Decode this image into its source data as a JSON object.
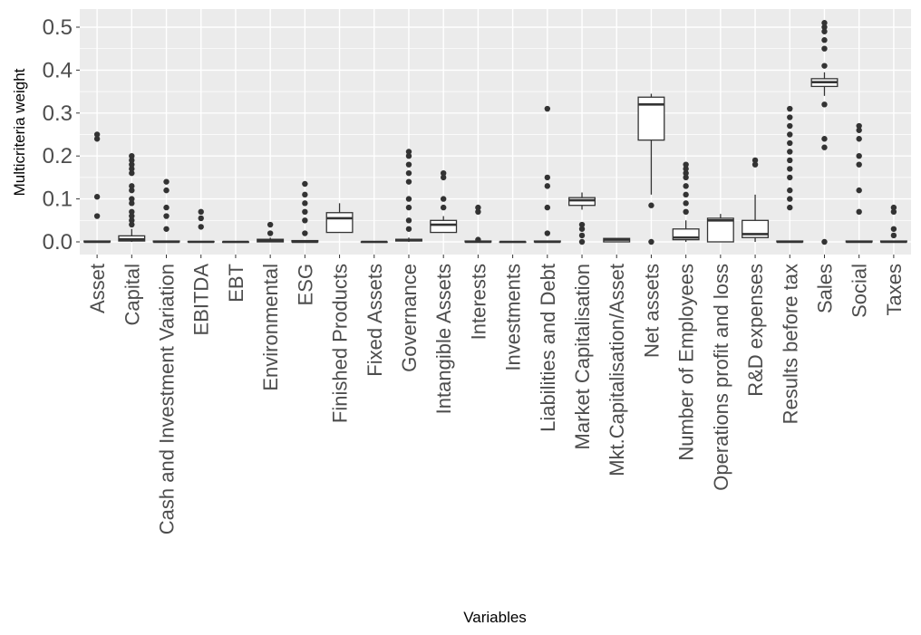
{
  "chart_data": {
    "type": "boxplot",
    "xlabel": "Variables",
    "ylabel": "Multicriteria weight",
    "ylim": [
      -0.03,
      0.53
    ],
    "yticks": [
      0.0,
      0.1,
      0.2,
      0.3,
      0.4,
      0.5
    ],
    "ytick_labels": [
      "0.0",
      "0.1",
      "0.2",
      "0.3",
      "0.4",
      "0.5"
    ],
    "grid": true,
    "colors": {
      "panel": "#ebebeb",
      "grid": "#ffffff",
      "box_fill": "#ffffff",
      "box_stroke": "#333333",
      "text": "#4d4d4d"
    },
    "categories": [
      "Asset",
      "Capital",
      "Cash and Investment Variation",
      "EBITDA",
      "EBT",
      "Environmental",
      "ESG",
      "Finished Products",
      "Fixed Assets",
      "Governance",
      "Intangible Assets",
      "Interests",
      "Investments",
      "Liabilities and Debt",
      "Market Capitalisation",
      "Mkt.Capitalisation/Asset",
      "Net assets",
      "Number of Employees",
      "Operations profit and loss",
      "R&D expenses",
      "Results before tax",
      "Sales",
      "Social",
      "Taxes"
    ],
    "boxes": [
      {
        "q1": 0,
        "median": 0,
        "q3": 0.002,
        "wlow": 0,
        "whigh": 0.002,
        "outliers": [
          0.105,
          0.06,
          0.24,
          0.25
        ]
      },
      {
        "q1": 0.002,
        "median": 0.006,
        "q3": 0.014,
        "wlow": 0,
        "whigh": 0.03,
        "outliers": [
          0.04,
          0.05,
          0.06,
          0.07,
          0.09,
          0.1,
          0.12,
          0.13,
          0.16,
          0.17,
          0.18,
          0.19,
          0.2
        ]
      },
      {
        "q1": 0,
        "median": 0,
        "q3": 0.002,
        "wlow": 0,
        "whigh": 0.002,
        "outliers": [
          0.03,
          0.06,
          0.08,
          0.12,
          0.14
        ]
      },
      {
        "q1": 0,
        "median": 0,
        "q3": 0.001,
        "wlow": 0,
        "whigh": 0.001,
        "outliers": [
          0.035,
          0.055,
          0.07
        ]
      },
      {
        "q1": 0,
        "median": 0,
        "q3": 0,
        "wlow": 0,
        "whigh": 0,
        "outliers": []
      },
      {
        "q1": 0,
        "median": 0.003,
        "q3": 0.006,
        "wlow": 0,
        "whigh": 0.01,
        "outliers": [
          0.02,
          0.04
        ]
      },
      {
        "q1": 0,
        "median": 0,
        "q3": 0.003,
        "wlow": 0,
        "whigh": 0.003,
        "outliers": [
          0.02,
          0.05,
          0.07,
          0.09,
          0.11,
          0.135
        ]
      },
      {
        "q1": 0.022,
        "median": 0.055,
        "q3": 0.068,
        "wlow": 0.022,
        "whigh": 0.09,
        "outliers": []
      },
      {
        "q1": 0,
        "median": 0,
        "q3": 0,
        "wlow": 0,
        "whigh": 0,
        "outliers": []
      },
      {
        "q1": 0.002,
        "median": 0.004,
        "q3": 0.006,
        "wlow": 0,
        "whigh": 0.01,
        "outliers": [
          0.03,
          0.05,
          0.08,
          0.1,
          0.14,
          0.16,
          0.18,
          0.2,
          0.21
        ]
      },
      {
        "q1": 0.022,
        "median": 0.04,
        "q3": 0.05,
        "wlow": 0.022,
        "whigh": 0.06,
        "outliers": [
          0.08,
          0.1,
          0.15,
          0.16
        ]
      },
      {
        "q1": 0,
        "median": 0,
        "q3": 0.002,
        "wlow": 0,
        "whigh": 0.002,
        "outliers": [
          0.005,
          0.07,
          0.08
        ]
      },
      {
        "q1": 0,
        "median": 0,
        "q3": 0,
        "wlow": 0,
        "whigh": 0,
        "outliers": []
      },
      {
        "q1": 0,
        "median": 0,
        "q3": 0.002,
        "wlow": 0,
        "whigh": 0.002,
        "outliers": [
          0.02,
          0.08,
          0.13,
          0.15,
          0.31
        ]
      },
      {
        "q1": 0.085,
        "median": 0.097,
        "q3": 0.103,
        "wlow": 0.075,
        "whigh": 0.115,
        "outliers": [
          0.0,
          0.015,
          0.03,
          0.04
        ]
      },
      {
        "q1": 0,
        "median": 0.005,
        "q3": 0.008,
        "wlow": 0,
        "whigh": 0.008,
        "outliers": []
      },
      {
        "q1": 0.237,
        "median": 0.32,
        "q3": 0.337,
        "wlow": 0.11,
        "whigh": 0.345,
        "outliers": [
          0.0,
          0.085
        ]
      },
      {
        "q1": 0.005,
        "median": 0.01,
        "q3": 0.03,
        "wlow": 0,
        "whigh": 0.05,
        "outliers": [
          0.07,
          0.09,
          0.11,
          0.13,
          0.15,
          0.16,
          0.17,
          0.18
        ]
      },
      {
        "q1": 0,
        "median": 0.05,
        "q3": 0.055,
        "wlow": 0,
        "whigh": 0.065,
        "outliers": []
      },
      {
        "q1": 0.01,
        "median": 0.018,
        "q3": 0.05,
        "wlow": 0,
        "whigh": 0.11,
        "outliers": [
          0.18,
          0.19
        ]
      },
      {
        "q1": 0,
        "median": 0,
        "q3": 0.002,
        "wlow": 0,
        "whigh": 0.002,
        "outliers": [
          0.08,
          0.1,
          0.12,
          0.15,
          0.17,
          0.19,
          0.21,
          0.23,
          0.25,
          0.27,
          0.29,
          0.31
        ]
      },
      {
        "q1": 0.362,
        "median": 0.372,
        "q3": 0.38,
        "wlow": 0.34,
        "whigh": 0.395,
        "outliers": [
          0.0,
          0.22,
          0.24,
          0.32,
          0.41,
          0.45,
          0.47,
          0.49,
          0.5,
          0.51
        ]
      },
      {
        "q1": 0,
        "median": 0,
        "q3": 0.002,
        "wlow": 0,
        "whigh": 0.002,
        "outliers": [
          0.07,
          0.12,
          0.18,
          0.2,
          0.24,
          0.26,
          0.27
        ]
      },
      {
        "q1": 0,
        "median": 0,
        "q3": 0.002,
        "wlow": 0,
        "whigh": 0.002,
        "outliers": [
          0.015,
          0.03,
          0.07,
          0.08
        ]
      }
    ]
  }
}
